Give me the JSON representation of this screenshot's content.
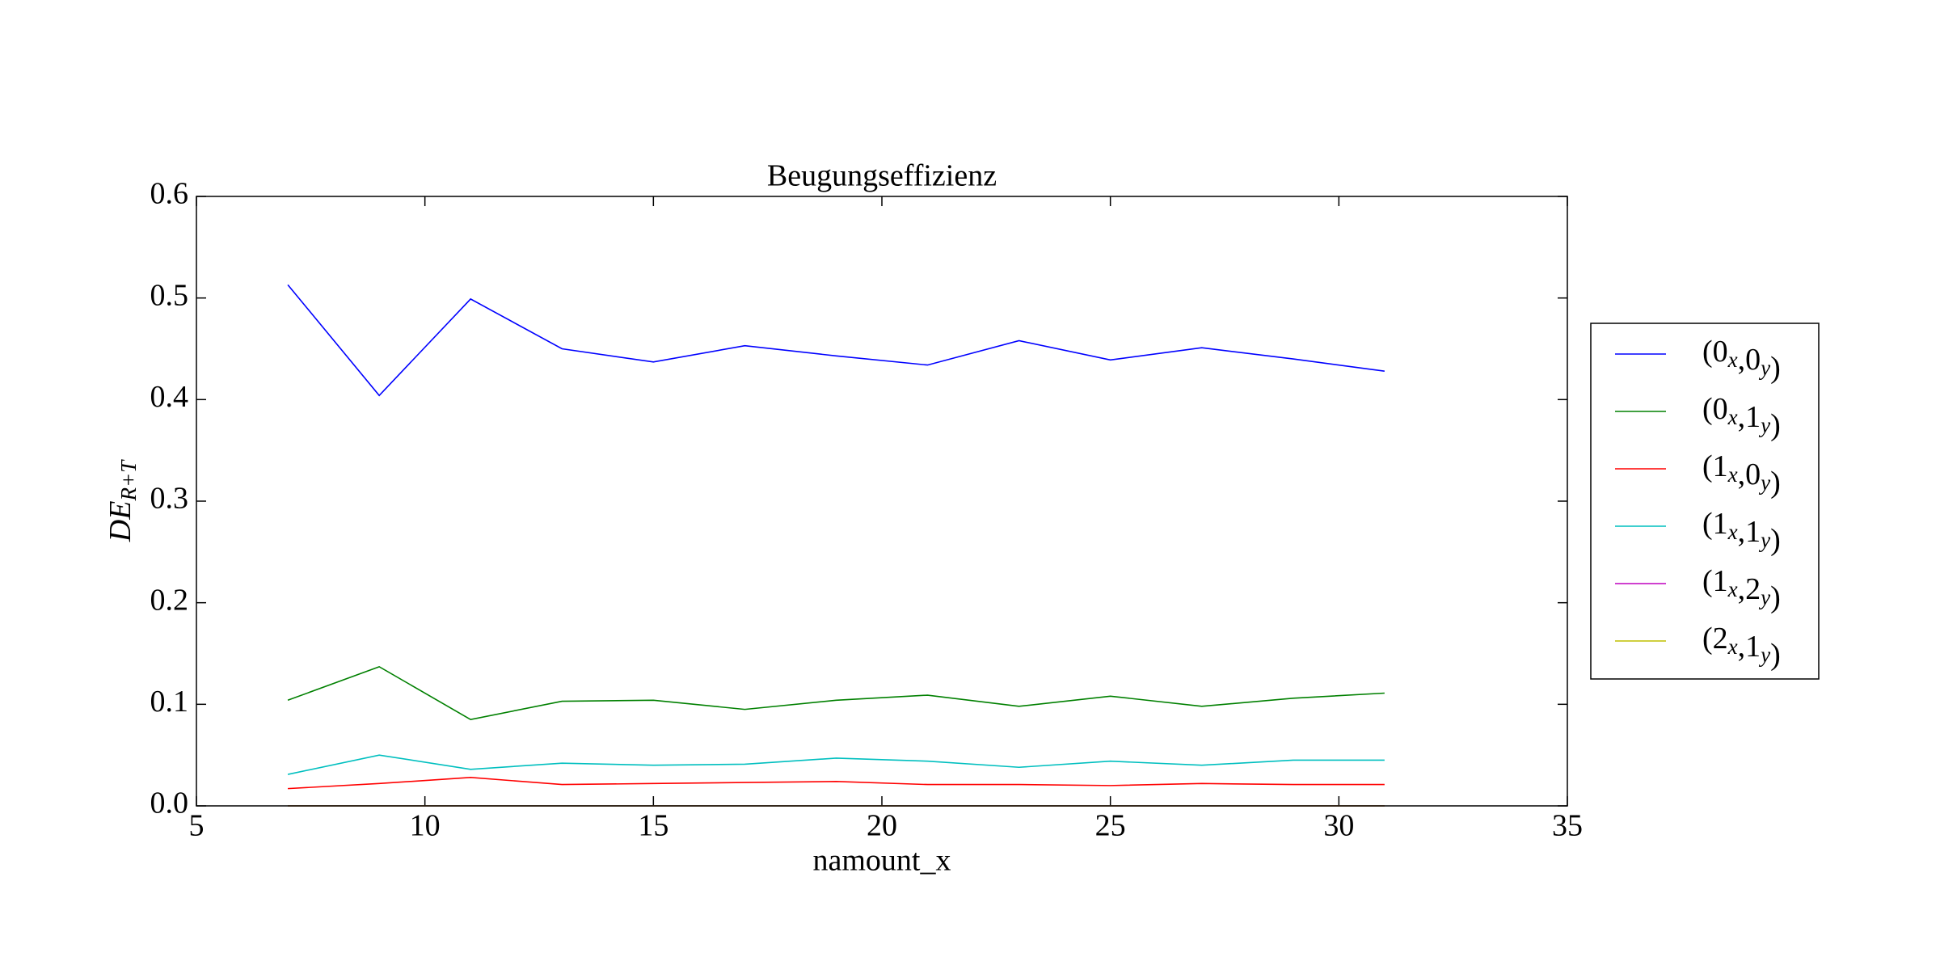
{
  "chart_data": {
    "type": "line",
    "title": "Beugungseffizienz",
    "x_label": "namount_x",
    "y_label": "DER+T",
    "x": [
      7,
      9,
      11,
      13,
      15,
      17,
      19,
      21,
      23,
      25,
      27,
      29,
      31
    ],
    "series": [
      {
        "name": "(0x,0y)",
        "color": "#0000ff",
        "values": [
          0.513,
          0.404,
          0.499,
          0.45,
          0.437,
          0.453,
          0.443,
          0.434,
          0.458,
          0.439,
          0.451,
          0.44,
          0.428
        ]
      },
      {
        "name": "(0x,1y)",
        "color": "#008000",
        "values": [
          0.104,
          0.137,
          0.085,
          0.103,
          0.104,
          0.095,
          0.104,
          0.109,
          0.098,
          0.108,
          0.098,
          0.106,
          0.111
        ]
      },
      {
        "name": "(1x,0y)",
        "color": "#ff0000",
        "values": [
          0.017,
          0.022,
          0.028,
          0.021,
          0.022,
          0.023,
          0.024,
          0.021,
          0.021,
          0.02,
          0.022,
          0.021,
          0.021
        ]
      },
      {
        "name": "(1x,1y)",
        "color": "#00bfbf",
        "values": [
          0.031,
          0.05,
          0.036,
          0.042,
          0.04,
          0.041,
          0.047,
          0.044,
          0.038,
          0.044,
          0.04,
          0.045,
          0.045
        ]
      },
      {
        "name": "(1x,2y)",
        "color": "#bf00bf",
        "values": [
          0,
          0,
          0,
          0,
          0,
          0,
          0,
          0,
          0,
          0,
          0,
          0,
          0
        ]
      },
      {
        "name": "(2x,1y)",
        "color": "#bfbf00",
        "values": [
          0,
          0,
          0,
          0,
          0,
          0,
          0,
          0,
          0,
          0,
          0,
          0,
          0
        ]
      }
    ],
    "xlim": [
      5,
      35
    ],
    "xticks": [
      5,
      10,
      15,
      20,
      25,
      30,
      35
    ],
    "ylim": [
      0,
      0.6
    ],
    "yticks": [
      {
        "value": 0,
        "label": "0.0"
      },
      0.1,
      0.2,
      0.3,
      0.4,
      0.5,
      0.6
    ],
    "legend": "outside right"
  }
}
